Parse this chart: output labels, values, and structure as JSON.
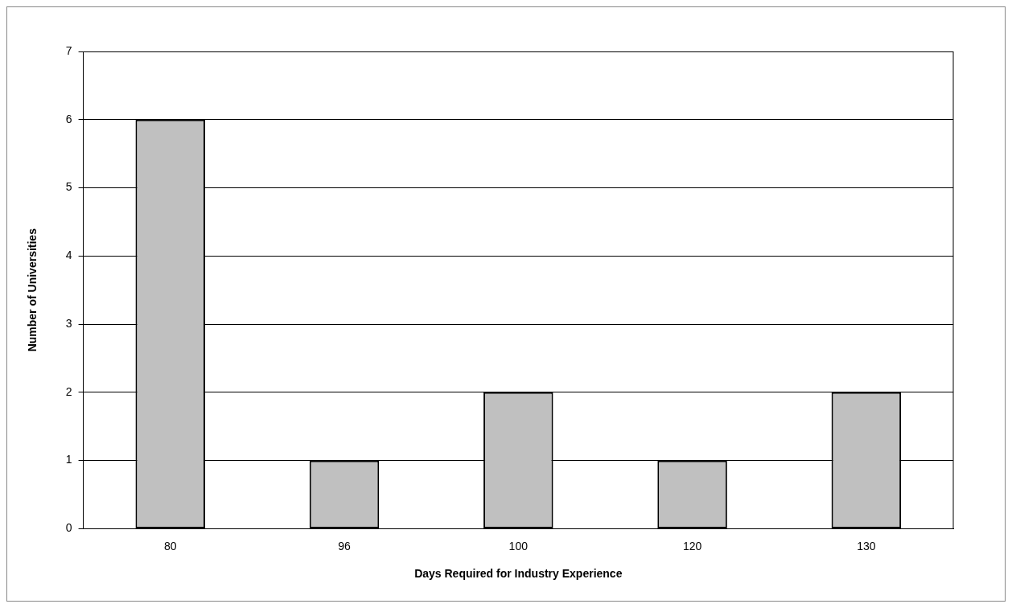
{
  "chart_data": {
    "type": "bar",
    "xlabel": "Days Required for Industry Experience",
    "ylabel": "Number of Universities",
    "categories": [
      "80",
      "96",
      "100",
      "120",
      "130"
    ],
    "values": [
      6,
      1,
      2,
      1,
      2
    ],
    "color": "#c0c0c0",
    "ylim": [
      0,
      7
    ],
    "yticks": [
      0,
      1,
      2,
      3,
      4,
      5,
      6,
      7
    ],
    "grid": "y",
    "legend": false
  }
}
